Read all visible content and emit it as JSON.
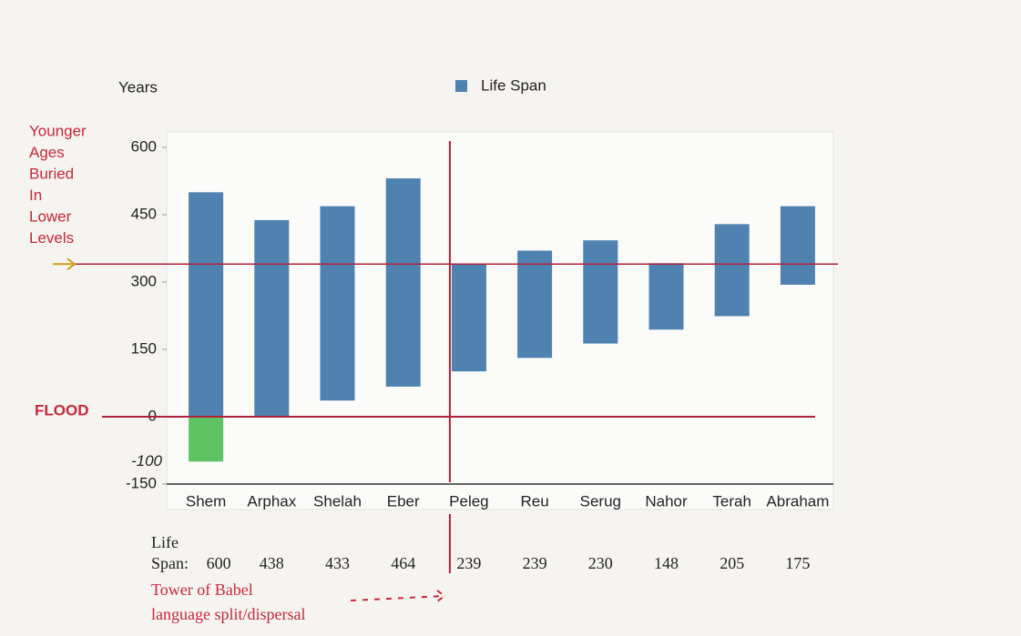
{
  "chart_data": {
    "type": "floating-bar",
    "y_label": "Years",
    "categories": [
      "Shem",
      "Arphax",
      "Shelah",
      "Eber",
      "Peleg",
      "Reu",
      "Serug",
      "Nahor",
      "Terah",
      "Abraham"
    ],
    "series": [
      {
        "name": "Life Span",
        "color": "#4f82b0",
        "low": [
          -100,
          0,
          36,
          67,
          101,
          131,
          163,
          194,
          224,
          294
        ],
        "high": [
          500,
          438,
          469,
          531,
          340,
          370,
          393,
          342,
          429,
          469
        ]
      }
    ],
    "below_zero_color": "#5cc462",
    "ylim": [
      -150,
      600
    ],
    "yticks": [
      600,
      450,
      300,
      150,
      0,
      -150
    ],
    "extra_yticks": [
      -100
    ],
    "grid": false,
    "left_note": [
      "Younger",
      "Ages",
      "Buried",
      "In",
      "Lower",
      "Levels"
    ],
    "marker_line": 340,
    "flood": {
      "label": "FLOOD",
      "value": 0
    },
    "row_label": [
      "Life",
      "Span:"
    ],
    "lifespans": [
      600,
      438,
      433,
      464,
      239,
      239,
      230,
      148,
      205,
      175
    ],
    "tower_note": [
      "Tower of Babel",
      "language split/dispersal"
    ]
  }
}
